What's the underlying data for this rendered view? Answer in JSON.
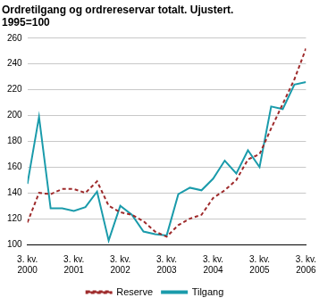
{
  "chart_data": {
    "type": "line",
    "title": [
      "Ordretilgang og ordrereservar totalt. Ujustert.",
      "1995=100"
    ],
    "categories": [
      "3. kv. 2000",
      null,
      null,
      null,
      "3. kv. 2001",
      null,
      null,
      null,
      "3. kv. 2002",
      null,
      null,
      null,
      "3. kv. 2003",
      null,
      null,
      null,
      "3. kv. 2004",
      null,
      null,
      null,
      "3. kv. 2005",
      null,
      null,
      null,
      "3. kv. 2006"
    ],
    "series": [
      {
        "name": "Reserve",
        "color": "#9e2a2b",
        "line_style": "dashed",
        "marker": "none",
        "values": [
          117,
          140,
          139,
          143,
          143,
          140,
          149,
          130,
          125,
          123,
          118,
          110,
          106,
          115,
          120,
          123,
          136,
          142,
          150,
          166,
          170,
          190,
          209,
          228,
          252
        ]
      },
      {
        "name": "Tilgang",
        "color": "#1a9bab",
        "line_style": "solid",
        "marker": "none",
        "values": [
          147,
          199,
          128,
          128,
          126,
          129,
          141,
          103,
          130,
          123,
          110,
          108,
          107,
          139,
          144,
          142,
          151,
          165,
          155,
          173,
          160,
          207,
          205,
          224,
          226
        ]
      }
    ],
    "ylim": [
      100,
      260
    ],
    "yticks": [
      100,
      120,
      140,
      160,
      180,
      200,
      220,
      240,
      260
    ],
    "grid": true,
    "legend": "bottom"
  }
}
